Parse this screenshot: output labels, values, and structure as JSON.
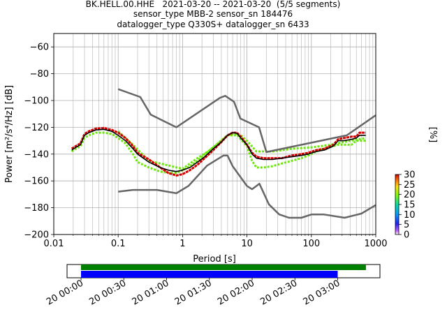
{
  "title_lines": [
    "BK.HELL.00.HHE   2021-03-20 -- 2021-03-20  (5/5 segments)",
    "sensor_type MBB-2 sensor_sn 184476",
    "datalogger_type Q330S+ datalogger_sn 6433"
  ],
  "colorbar": {
    "label": "[%]",
    "ticks": [
      "0",
      "5",
      "10",
      "15",
      "20",
      "25",
      "30"
    ],
    "range": [
      0,
      30
    ]
  },
  "timeline": {
    "tick_labels": [
      "20 00:00",
      "20 00:30",
      "20 01:00",
      "20 01:30",
      "20 02:00",
      "20 02:30",
      "20 03:00"
    ],
    "green_bar_hours": [
      0,
      3.33
    ],
    "blue_bar_hours": [
      0,
      3.0
    ],
    "colors": {
      "green": "#008000",
      "blue": "#0000ff"
    }
  },
  "chart_data": {
    "type": "line",
    "xlabel": "Period [s]",
    "ylabel": "Power [m²/s⁴/Hz] [dB]",
    "xscale": "log",
    "xlim": [
      0.01,
      1000
    ],
    "ylim": [
      -200,
      -50
    ],
    "x_tick_labels": [
      "0.01",
      "0.1",
      "1",
      "10",
      "100",
      "1000"
    ],
    "y_ticks": [
      -200,
      -180,
      -160,
      -140,
      -120,
      -100,
      -80,
      -60
    ],
    "y_tick_labels": [
      "−200",
      "−180",
      "−160",
      "−140",
      "−120",
      "−100",
      "−80",
      "−60"
    ],
    "grid": true,
    "series": [
      {
        "role": "mean",
        "color": "#000000",
        "points": [
          [
            0.019,
            -137
          ],
          [
            0.022,
            -135
          ],
          [
            0.026,
            -133
          ],
          [
            0.03,
            -126
          ],
          [
            0.035,
            -124
          ],
          [
            0.045,
            -122
          ],
          [
            0.06,
            -121.5
          ],
          [
            0.08,
            -123
          ],
          [
            0.1,
            -126
          ],
          [
            0.13,
            -130
          ],
          [
            0.17,
            -136
          ],
          [
            0.2,
            -140
          ],
          [
            0.3,
            -146
          ],
          [
            0.45,
            -150
          ],
          [
            0.6,
            -152
          ],
          [
            0.8,
            -153
          ],
          [
            1,
            -152
          ],
          [
            1.3,
            -150
          ],
          [
            1.7,
            -146
          ],
          [
            2.2,
            -142
          ],
          [
            3,
            -136
          ],
          [
            4,
            -131
          ],
          [
            5,
            -126
          ],
          [
            6,
            -124
          ],
          [
            7,
            -124.5
          ],
          [
            8,
            -128
          ],
          [
            10,
            -133
          ],
          [
            12,
            -140
          ],
          [
            14,
            -143
          ],
          [
            18,
            -144
          ],
          [
            25,
            -144
          ],
          [
            35,
            -143
          ],
          [
            50,
            -142
          ],
          [
            70,
            -141
          ],
          [
            90,
            -140
          ],
          [
            120,
            -138
          ],
          [
            160,
            -137
          ],
          [
            220,
            -134
          ],
          [
            260,
            -130
          ],
          [
            320,
            -130
          ],
          [
            420,
            -129
          ],
          [
            500,
            -128
          ],
          [
            560,
            -126
          ],
          [
            700,
            -126
          ]
        ]
      },
      {
        "role": "mode",
        "color": "#d40000",
        "points": [
          [
            0.019,
            -136
          ],
          [
            0.022,
            -134
          ],
          [
            0.026,
            -132
          ],
          [
            0.03,
            -125
          ],
          [
            0.035,
            -123
          ],
          [
            0.045,
            -121
          ],
          [
            0.06,
            -120.5
          ],
          [
            0.08,
            -122
          ],
          [
            0.1,
            -124
          ],
          [
            0.13,
            -128
          ],
          [
            0.17,
            -134
          ],
          [
            0.2,
            -139
          ],
          [
            0.3,
            -144
          ],
          [
            0.45,
            -150
          ],
          [
            0.6,
            -154
          ],
          [
            0.8,
            -156
          ],
          [
            1,
            -155
          ],
          [
            1.3,
            -152
          ],
          [
            1.7,
            -148
          ],
          [
            2.2,
            -143
          ],
          [
            3,
            -137
          ],
          [
            4,
            -131
          ],
          [
            5,
            -126
          ],
          [
            6,
            -124
          ],
          [
            7,
            -124
          ],
          [
            8,
            -127
          ],
          [
            10,
            -133
          ],
          [
            12,
            -139
          ],
          [
            14,
            -142
          ],
          [
            18,
            -143
          ],
          [
            25,
            -143
          ],
          [
            35,
            -143
          ],
          [
            50,
            -141
          ],
          [
            70,
            -140
          ],
          [
            90,
            -139
          ],
          [
            120,
            -137
          ],
          [
            160,
            -136
          ],
          [
            220,
            -133
          ],
          [
            260,
            -129
          ],
          [
            320,
            -128
          ],
          [
            420,
            -127
          ],
          [
            500,
            -127
          ],
          [
            560,
            -124
          ],
          [
            700,
            -124
          ]
        ]
      },
      {
        "role": "spread",
        "color": "#66e600",
        "points": [
          [
            0.019,
            -138
          ],
          [
            0.022,
            -136
          ],
          [
            0.026,
            -134
          ],
          [
            0.03,
            -128
          ],
          [
            0.035,
            -126
          ],
          [
            0.045,
            -124
          ],
          [
            0.06,
            -124
          ],
          [
            0.08,
            -125
          ],
          [
            0.1,
            -128
          ],
          [
            0.13,
            -132
          ],
          [
            0.17,
            -140
          ],
          [
            0.2,
            -146
          ],
          [
            0.3,
            -150
          ],
          [
            0.45,
            -153
          ],
          [
            0.6,
            -154
          ],
          [
            0.8,
            -154
          ],
          [
            1,
            -152
          ],
          [
            1.3,
            -149
          ],
          [
            1.7,
            -145
          ],
          [
            2.2,
            -140
          ],
          [
            3,
            -135
          ],
          [
            4,
            -130
          ],
          [
            5,
            -126
          ],
          [
            6,
            -125
          ],
          [
            7,
            -125
          ],
          [
            8,
            -129
          ],
          [
            10,
            -134
          ],
          [
            12,
            -145
          ],
          [
            14,
            -150
          ],
          [
            18,
            -150
          ],
          [
            25,
            -149
          ],
          [
            35,
            -147
          ],
          [
            50,
            -145
          ],
          [
            70,
            -143
          ],
          [
            90,
            -141
          ],
          [
            120,
            -138
          ],
          [
            160,
            -136
          ],
          [
            220,
            -134
          ],
          [
            260,
            -133
          ],
          [
            320,
            -133
          ],
          [
            420,
            -133
          ],
          [
            500,
            -130
          ],
          [
            560,
            -130
          ],
          [
            700,
            -130
          ]
        ]
      },
      {
        "role": "spread-upper",
        "color": "#66e600",
        "points": [
          [
            0.1,
            -123
          ],
          [
            0.13,
            -128
          ],
          [
            0.17,
            -133
          ],
          [
            0.3,
            -145
          ],
          [
            1,
            -151
          ],
          [
            1.7,
            -143
          ],
          [
            2.5,
            -138
          ],
          [
            5,
            -126
          ],
          [
            8,
            -126
          ],
          [
            10,
            -130
          ],
          [
            14,
            -138
          ],
          [
            25,
            -138
          ],
          [
            50,
            -136
          ],
          [
            100,
            -135
          ],
          [
            200,
            -133
          ],
          [
            400,
            -130
          ],
          [
            700,
            -128
          ]
        ]
      },
      {
        "role": "nhnm",
        "color": "#666666",
        "points": [
          [
            0.1,
            -91.5
          ],
          [
            0.22,
            -97.4
          ],
          [
            0.32,
            -110.5
          ],
          [
            0.8,
            -120
          ],
          [
            3.8,
            -98
          ],
          [
            4.6,
            -96.5
          ],
          [
            6.3,
            -101
          ],
          [
            7.9,
            -113.5
          ],
          [
            15.4,
            -120
          ],
          [
            20,
            -138.5
          ],
          [
            354.8,
            -126
          ],
          [
            1000,
            -111
          ]
        ]
      },
      {
        "role": "nlnm",
        "color": "#666666",
        "points": [
          [
            0.1,
            -168
          ],
          [
            0.17,
            -166.7
          ],
          [
            0.4,
            -166.7
          ],
          [
            0.8,
            -169.2
          ],
          [
            1.24,
            -163.7
          ],
          [
            2.4,
            -148.6
          ],
          [
            4.3,
            -141.1
          ],
          [
            5,
            -141.1
          ],
          [
            6,
            -149
          ],
          [
            10,
            -163.8
          ],
          [
            12,
            -166.2
          ],
          [
            15.6,
            -162.1
          ],
          [
            21.9,
            -177.5
          ],
          [
            31.6,
            -185
          ],
          [
            45,
            -187.5
          ],
          [
            70,
            -187.5
          ],
          [
            101,
            -185
          ],
          [
            154,
            -185
          ],
          [
            328,
            -187.5
          ],
          [
            600,
            -184.4
          ],
          [
            1000,
            -178
          ]
        ]
      }
    ]
  }
}
